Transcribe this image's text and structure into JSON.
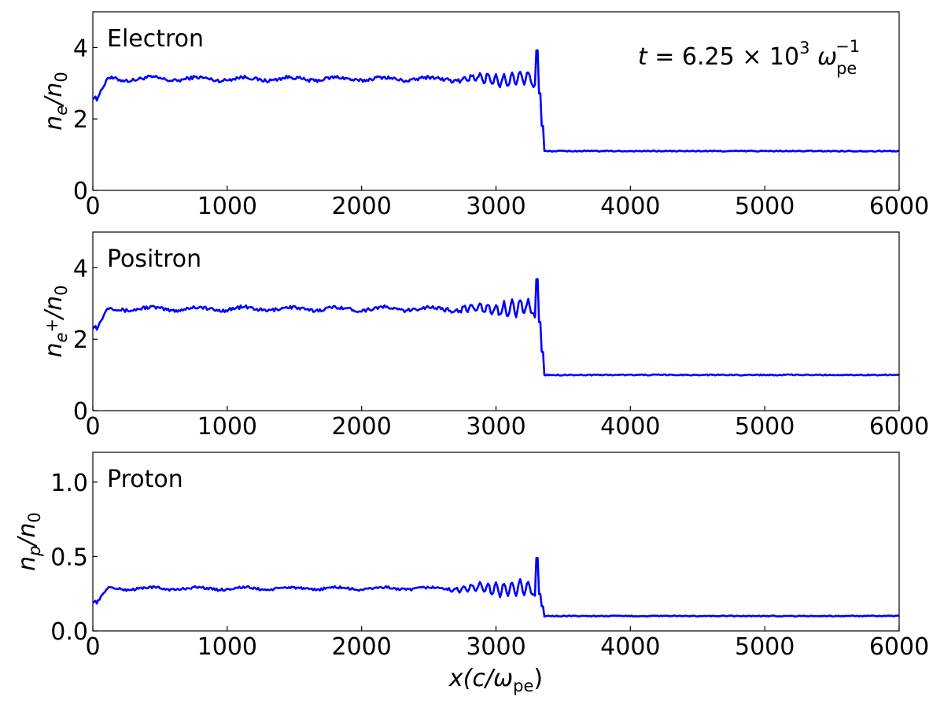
{
  "chart_data": [
    {
      "type": "line",
      "panel": "electron",
      "label": "Electron",
      "ylabel": {
        "base": "n",
        "sub": "e",
        "denom": "n",
        "denom_sub": "0"
      },
      "annotation": {
        "lhs": "t",
        "eq": " = 6.25 × 10",
        "exp": "3",
        "omega": " ω",
        "sub": "pe",
        "sup": "−1"
      },
      "xlim": [
        0,
        6000
      ],
      "ylim": [
        0,
        5
      ],
      "xticks": [
        0,
        1000,
        2000,
        3000,
        4000,
        5000,
        6000
      ],
      "yticks": [
        0,
        2,
        4
      ],
      "color": "#0000ff",
      "series": [
        {
          "name": "",
          "profile": {
            "x0": 0,
            "start": 2.55,
            "upstream": 3.12,
            "upstream_noise": 0.07,
            "ripple_start": 2600,
            "ripple_amp": 0.25,
            "shock_x": 3320,
            "spike": 3.92,
            "downstream": 1.1,
            "downstream_noise": 0.015,
            "x_end": 6000
          }
        }
      ]
    },
    {
      "type": "line",
      "panel": "positron",
      "label": "Positron",
      "ylabel": {
        "base": "n",
        "sub": "e",
        "sub_sup": "+",
        "denom": "n",
        "denom_sub": "0"
      },
      "xlim": [
        0,
        6000
      ],
      "ylim": [
        0,
        5
      ],
      "xticks": [
        0,
        1000,
        2000,
        3000,
        4000,
        5000,
        6000
      ],
      "yticks": [
        0,
        2,
        4
      ],
      "color": "#0000ff",
      "series": [
        {
          "name": "",
          "profile": {
            "x0": 0,
            "start": 2.3,
            "upstream": 2.85,
            "upstream_noise": 0.07,
            "ripple_start": 2600,
            "ripple_amp": 0.25,
            "shock_x": 3320,
            "spike": 3.68,
            "downstream": 1.0,
            "downstream_noise": 0.015,
            "x_end": 6000
          }
        }
      ]
    },
    {
      "type": "line",
      "panel": "proton",
      "label": "Proton",
      "ylabel": {
        "base": "n",
        "sub": "p",
        "denom": "n",
        "denom_sub": "0"
      },
      "xlabel": {
        "var": "x",
        "open": "(c/ω",
        "sub": "pe",
        "close": ")"
      },
      "xlim": [
        0,
        6000
      ],
      "ylim": [
        0,
        1.2
      ],
      "xticks": [
        0,
        1000,
        2000,
        3000,
        4000,
        5000,
        6000
      ],
      "yticks": [
        0.0,
        0.5,
        1.0
      ],
      "ytick_labels": [
        "0.0",
        "0.5",
        "1.0"
      ],
      "color": "#0000ff",
      "series": [
        {
          "name": "",
          "profile": {
            "x0": 0,
            "start": 0.19,
            "upstream": 0.285,
            "upstream_noise": 0.012,
            "ripple_start": 2600,
            "ripple_amp": 0.06,
            "shock_x": 3320,
            "spike": 0.49,
            "downstream": 0.1,
            "downstream_noise": 0.003,
            "x_end": 6000
          }
        }
      ]
    }
  ]
}
